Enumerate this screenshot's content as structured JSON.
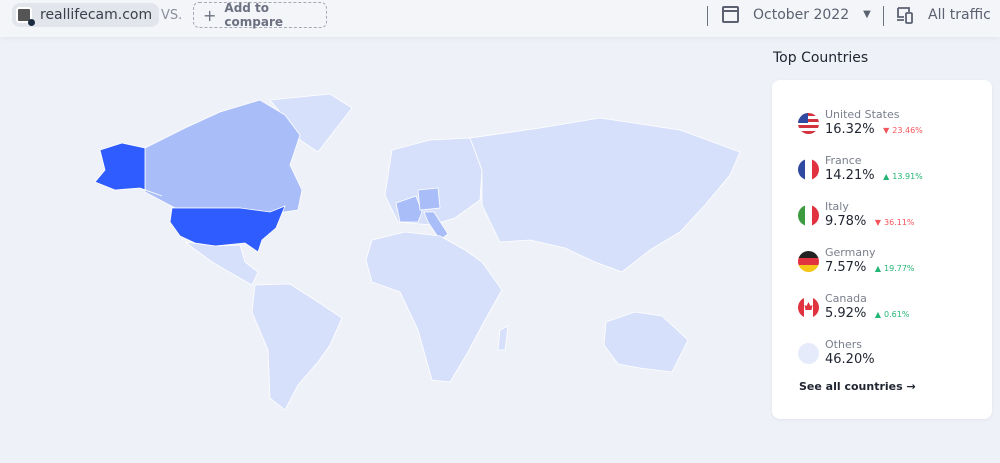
{
  "header": {
    "site": "reallifecam.com",
    "vs_label": "VS.",
    "compare_label": "Add to compare",
    "date": "October 2022",
    "traffic": "All traffic"
  },
  "panel": {
    "title": "Top Countries",
    "countries": [
      {
        "name": "United States",
        "share": "16.32%",
        "change": "23.46%",
        "direction": "down"
      },
      {
        "name": "France",
        "share": "14.21%",
        "change": "13.91%",
        "direction": "up"
      },
      {
        "name": "Italy",
        "share": "9.78%",
        "change": "36.11%",
        "direction": "down"
      },
      {
        "name": "Germany",
        "share": "7.57%",
        "change": "19.77%",
        "direction": "up"
      },
      {
        "name": "Canada",
        "share": "5.92%",
        "change": "0.61%",
        "direction": "up"
      },
      {
        "name": "Others",
        "share": "46.20%"
      }
    ],
    "see_all": "See all countries →"
  },
  "colors": {
    "top": "#2f5cff",
    "medium": "#a9bdf8",
    "low": "#d6e0fa",
    "up": "#22b573",
    "down": "#f2545b"
  }
}
